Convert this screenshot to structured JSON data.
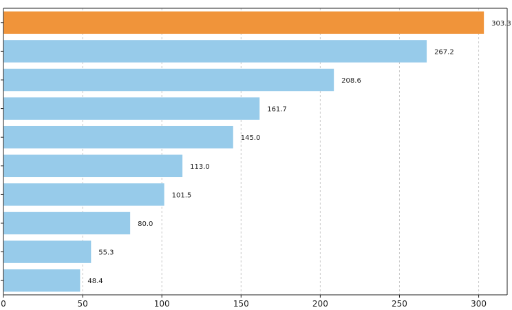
{
  "chart_data": {
    "type": "bar",
    "orientation": "horizontal",
    "title": "",
    "xlabel": "",
    "ylabel": "",
    "xlim": [
      0,
      318
    ],
    "xticks": [
      0,
      50,
      100,
      150,
      200,
      250,
      300
    ],
    "grid": "vertical dashed",
    "legend": "none",
    "colors": {
      "highlight": "#F0943A",
      "default": "#97CBEA"
    },
    "values": [
      303.3,
      267.2,
      208.6,
      161.7,
      145.0,
      113.0,
      101.5,
      80.0,
      55.3,
      48.4
    ],
    "value_labels": [
      "303.3",
      "267.2",
      "208.6",
      "161.7",
      "145.0",
      "113.0",
      "101.5",
      "80.0",
      "55.3",
      "48.4"
    ],
    "highlight_index": 0
  }
}
